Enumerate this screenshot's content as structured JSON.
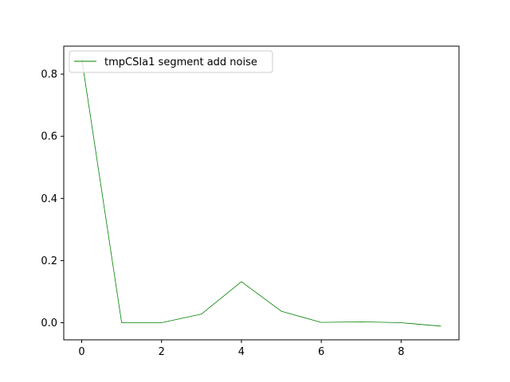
{
  "chart_data": {
    "type": "line",
    "title": "",
    "xlabel": "",
    "ylabel": "",
    "xlim": [
      -0.45,
      9.45
    ],
    "ylim": [
      -0.055,
      0.89
    ],
    "x_ticks": [
      0,
      2,
      4,
      6,
      8
    ],
    "x_tick_labels": [
      "0",
      "2",
      "4",
      "6",
      "8"
    ],
    "y_ticks": [
      0.0,
      0.2,
      0.4,
      0.6,
      0.8
    ],
    "y_tick_labels": [
      "0.0",
      "0.2",
      "0.4",
      "0.6",
      "0.8"
    ],
    "grid": false,
    "legend_position": "top-left",
    "series": [
      {
        "name": "tmpCSIa1 segment add noise",
        "color": "#008000",
        "x": [
          0,
          1,
          2,
          3,
          4,
          5,
          6,
          7,
          8,
          9
        ],
        "y": [
          0.85,
          0.0,
          0.0,
          0.028,
          0.132,
          0.037,
          0.001,
          0.003,
          0.0,
          -0.011
        ]
      }
    ]
  }
}
